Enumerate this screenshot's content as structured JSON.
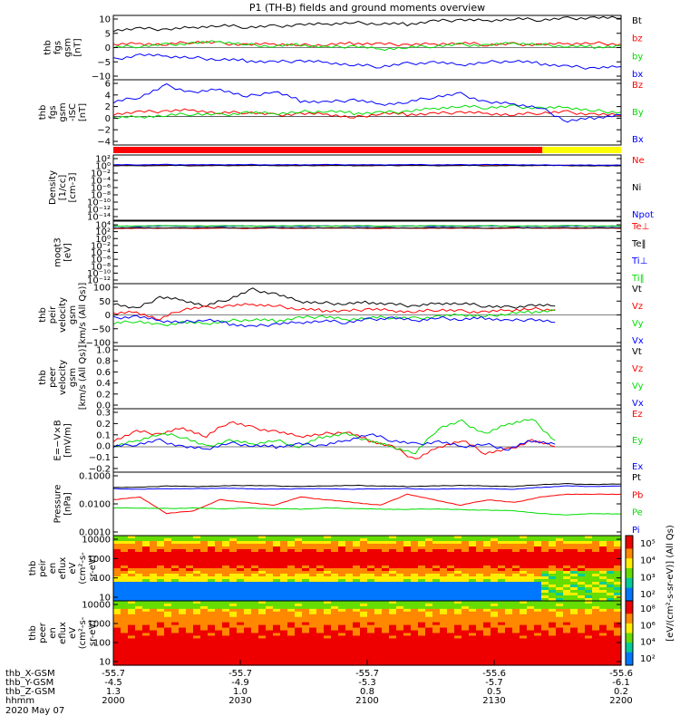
{
  "title": "P1 (TH-B) fields and ground moments overview",
  "colors": {
    "black": "#000000",
    "red": "#ff0000",
    "green": "#00dd00",
    "blue": "#0000ff",
    "yellow": "#ffff00"
  },
  "footer": {
    "rows": [
      {
        "label": "thb_X-GSM",
        "values": [
          "-55.7",
          "-55.7",
          "-55.7",
          "-55.6",
          "-55.6"
        ]
      },
      {
        "label": "thb_Y-GSM",
        "values": [
          "-4.5",
          "-4.9",
          "-5.3",
          "-5.7",
          "-6.1"
        ]
      },
      {
        "label": "thb_Z-GSM",
        "values": [
          "1.3",
          "1.0",
          "0.8",
          "0.5",
          "0.2"
        ]
      },
      {
        "label": "hhmm",
        "values": [
          "2000",
          "2030",
          "2100",
          "2130",
          "2200"
        ]
      }
    ],
    "date": "2020 May 07"
  },
  "chart_data": [
    {
      "type": "line",
      "ylabel": [
        "thb",
        "fgs",
        "gsm",
        "[nT]"
      ],
      "yticks": [
        "10",
        "5",
        "0",
        "−5",
        "−10"
      ],
      "ylim": [
        -11,
        11
      ],
      "series": [
        {
          "name": "Bt",
          "color": "#000000",
          "values": [
            6,
            6.5,
            6.2,
            7,
            7.5,
            7,
            7.3,
            7.8,
            8,
            8.5,
            8.2,
            8,
            9,
            9.5,
            9.3,
            9.8,
            9.5,
            10,
            10.2,
            10
          ]
        },
        {
          "name": "bz",
          "color": "#ff0000",
          "values": [
            1,
            1.5,
            1,
            2,
            1.5,
            1,
            1.2,
            0.8,
            1,
            1.5,
            1.2,
            1,
            1.3,
            1.5,
            1,
            1.2,
            1,
            1.3,
            1.5,
            1.2
          ]
        },
        {
          "name": "by",
          "color": "#00dd00",
          "values": [
            0,
            0.5,
            1,
            1.5,
            2,
            1,
            0.5,
            1,
            0,
            0.5,
            -0.5,
            0,
            0.5,
            1,
            0.8,
            1.5,
            1,
            0.5,
            0.2,
            0.5
          ]
        },
        {
          "name": "bx",
          "color": "#0000ff",
          "values": [
            -4,
            -2.5,
            -3,
            -3.5,
            -4,
            -4.5,
            -5,
            -4.5,
            -5,
            -6,
            -6.5,
            -5.5,
            -5,
            -6,
            -5,
            -4.5,
            -5.5,
            -6.5,
            -7,
            -6.5
          ]
        }
      ]
    },
    {
      "type": "line",
      "ylabel": [
        "thb",
        "fgs",
        "gsm",
        "-ISC",
        "[nT]"
      ],
      "yticks": [
        "6",
        "4",
        "2",
        "0",
        "−2",
        "−4"
      ],
      "ylim": [
        -5,
        6.5
      ],
      "series": [
        {
          "name": "Bz",
          "color": "#ff0000",
          "values": [
            0.5,
            0.8,
            1,
            1.2,
            0.6,
            0.8,
            0.3,
            0.5,
            0.4,
            -0.2,
            0.6,
            0.4,
            0.5,
            0.8,
            0.6,
            0.3,
            0.7,
            0.8,
            0.4,
            0.2
          ]
        },
        {
          "name": "By",
          "color": "#00dd00",
          "values": [
            -0.2,
            0,
            0.2,
            0.5,
            0.3,
            0.7,
            0.5,
            0.8,
            1,
            0.6,
            0.7,
            0.9,
            1.5,
            1.8,
            1.6,
            1.8,
            1.5,
            1.6,
            1,
            0.8
          ]
        },
        {
          "name": "Bx",
          "color": "#0000ff",
          "values": [
            2.5,
            3.5,
            5.5,
            4.2,
            4.8,
            3.5,
            4.5,
            2.8,
            2.5,
            3,
            2.2,
            2.5,
            3.5,
            4,
            2.5,
            2.2,
            1.5,
            -0.8,
            -0.2,
            0.3
          ]
        }
      ]
    },
    {
      "type": "line",
      "log": true,
      "ylabel": [
        "Density",
        "[1/cc]",
        "[cm-3]"
      ],
      "yticks": [
        "10²",
        "10⁰",
        "10⁻²",
        "10⁻⁴",
        "10⁻⁶",
        "10⁻⁸",
        "10⁻¹⁰",
        "10⁻¹²",
        "10⁻¹⁴"
      ],
      "ylim": [
        -15,
        3
      ],
      "series": [
        {
          "name": "Ne",
          "color": "#ff0000",
          "values": [
            0.15,
            0.15,
            0.2,
            0.15,
            0.2,
            0.15,
            0.15,
            0.2,
            0.15,
            0.2,
            0.15,
            0.2,
            0.15,
            0.2,
            0.1,
            0.2,
            0.15,
            0.1,
            0.1,
            0.15
          ]
        },
        {
          "name": "Ni",
          "color": "#000000",
          "values": [
            0.05,
            0.05,
            0.1,
            0.05,
            0.05,
            0.1,
            0.05,
            0.05,
            0.1,
            0.05,
            0.05,
            0.1,
            0.05,
            0.1,
            0.05,
            0.05,
            0.1,
            0.05,
            0,
            0.05
          ]
        },
        {
          "name": "Npot",
          "color": "#0000ff",
          "values": [
            0.3,
            0.3,
            0.35,
            0.3,
            0.3,
            0.35,
            0.3,
            0.3,
            0.35,
            0.3,
            0.3,
            0.35,
            0.3,
            0.3,
            0.35,
            0.3,
            0.25,
            0.2,
            0.2,
            0.2
          ]
        }
      ]
    },
    {
      "type": "line",
      "log": true,
      "ylabel": [
        "moqt3",
        "[eV]"
      ],
      "yticks": [
        "10⁴",
        "10²",
        "10⁰",
        "10⁻²",
        "10⁻⁴",
        "10⁻⁶",
        "10⁻⁸",
        "10⁻¹⁰",
        "10⁻¹²"
      ],
      "ylim": [
        -13,
        5
      ],
      "series": [
        {
          "name": "Te⊥",
          "color": "#ff0000",
          "values": [
            2.9,
            2.9,
            3,
            2.9,
            3,
            2.9,
            3,
            2.9,
            3,
            3,
            2.9,
            3,
            2.9,
            3,
            2.9,
            3,
            3,
            2.9,
            3,
            2.9
          ]
        },
        {
          "name": "Te‖",
          "color": "#000000",
          "values": [
            3,
            3.1,
            3,
            3.1,
            3.1,
            3,
            3.1,
            3,
            3.1,
            3,
            3.1,
            3,
            3.1,
            3.1,
            3,
            3.1,
            3,
            3.1,
            3,
            3.1
          ]
        },
        {
          "name": "Ti⊥",
          "color": "#0000ff",
          "values": [
            3.5,
            3.5,
            3.6,
            3.5,
            3.5,
            3.6,
            3.5,
            3.5,
            3.6,
            3.5,
            3.5,
            3.6,
            3.5,
            3.5,
            3.6,
            3.5,
            3.5,
            3.6,
            3.5,
            3.5
          ]
        },
        {
          "name": "Ti‖",
          "color": "#00dd00",
          "values": [
            3.6,
            3.6,
            3.7,
            3.6,
            3.7,
            3.6,
            3.6,
            3.7,
            3.6,
            3.7,
            3.6,
            3.6,
            3.7,
            3.6,
            3.7,
            3.6,
            3.6,
            3.7,
            3.6,
            3.6
          ]
        }
      ]
    },
    {
      "type": "line",
      "ylabel": [
        "thb",
        "peir",
        "velocity",
        "gsm",
        "[km/s (All Qs)]"
      ],
      "yticks": [
        "100",
        "50",
        "0",
        "−50",
        "−100"
      ],
      "ylim": [
        -105,
        105
      ],
      "series": [
        {
          "name": "Vt",
          "color": "#000000",
          "values": [
            40,
            20,
            60,
            50,
            30,
            55,
            85,
            70,
            45,
            40,
            38,
            42,
            35,
            30,
            40,
            38,
            30,
            25,
            32,
            30
          ]
        },
        {
          "name": "Vz",
          "color": "#ff0000",
          "values": [
            5,
            10,
            -15,
            20,
            25,
            30,
            35,
            30,
            20,
            15,
            12,
            20,
            15,
            10,
            18,
            12,
            10,
            15,
            20,
            18
          ]
        },
        {
          "name": "Vy",
          "color": "#00dd00",
          "values": [
            -30,
            -20,
            -35,
            -25,
            -30,
            -20,
            -15,
            -20,
            -10,
            -5,
            -15,
            -10,
            -8,
            -12,
            -5,
            0,
            -5,
            5,
            10,
            15
          ]
        },
        {
          "name": "Vx",
          "color": "#0000ff",
          "values": [
            -10,
            -5,
            -20,
            -25,
            -15,
            -30,
            -40,
            -30,
            -25,
            -20,
            -25,
            -15,
            -10,
            -20,
            -10,
            -15,
            -10,
            -20,
            -15,
            -25
          ]
        }
      ]
    },
    {
      "type": "line",
      "ylabel": [
        "thb",
        "peer",
        "velocity",
        "gsm",
        "[km/s (All Qs)]"
      ],
      "yticks": [
        "1.0",
        "0.8",
        "0.6",
        "0.4",
        "0.2",
        "0.0"
      ],
      "ylim": [
        0,
        1.0
      ],
      "series": [
        {
          "name": "Vt",
          "color": "#000000",
          "values": []
        },
        {
          "name": "Vz",
          "color": "#ff0000",
          "values": []
        },
        {
          "name": "Vy",
          "color": "#00dd00",
          "values": []
        },
        {
          "name": "Vx",
          "color": "#0000ff",
          "values": []
        }
      ]
    },
    {
      "type": "line",
      "ylabel": [
        "E=−V×B",
        "[mV/m]"
      ],
      "yticks": [
        "0.3",
        "0.2",
        "0.1",
        "0.0",
        "−0.1",
        "−0.2"
      ],
      "ylim": [
        -0.2,
        0.3
      ],
      "series": [
        {
          "name": "Ez",
          "color": "#ff0000",
          "values": [
            0.05,
            0.12,
            0.1,
            0.15,
            0.08,
            0.2,
            0.15,
            0.12,
            0.08,
            0.1,
            0.12,
            0.05,
            0,
            -0.1,
            0,
            0.05,
            -0.05,
            -0.02,
            0.05,
            0
          ]
        },
        {
          "name": "Ey",
          "color": "#00dd00",
          "values": [
            0,
            0.05,
            0.1,
            0.08,
            0,
            0.05,
            0.02,
            0.05,
            0,
            0.08,
            0.1,
            0.05,
            0,
            -0.05,
            0.15,
            0.2,
            0.1,
            0.18,
            0.22,
            0.05
          ]
        },
        {
          "name": "Ex",
          "color": "#0000ff",
          "values": [
            0,
            0.02,
            0.05,
            0,
            -0.02,
            0.03,
            0.01,
            0,
            0.02,
            0.01,
            0.05,
            0.1,
            0.05,
            0.02,
            0.04,
            0,
            0.02,
            -0.02,
            0.05,
            0.02
          ]
        }
      ]
    },
    {
      "type": "line",
      "log": true,
      "ylabel": [
        "Pressure",
        "[nPa]"
      ],
      "yticks": [
        "0.1000",
        "0.0100",
        "0.0010"
      ],
      "ylim": [
        -3.3,
        -1
      ],
      "series": [
        {
          "name": "Pt",
          "color": "#000000",
          "values": [
            -1.55,
            -1.55,
            -1.5,
            -1.52,
            -1.5,
            -1.48,
            -1.5,
            -1.52,
            -1.5,
            -1.48,
            -1.5,
            -1.52,
            -1.5,
            -1.48,
            -1.5,
            -1.52,
            -1.45,
            -1.42,
            -1.45,
            -1.43
          ]
        },
        {
          "name": "Pb",
          "color": "#ff0000",
          "values": [
            -2,
            -1.9,
            -2.5,
            -2.4,
            -2,
            -2.1,
            -2.2,
            -1.9,
            -2,
            -2.1,
            -2.2,
            -1.8,
            -2,
            -2.2,
            -2,
            -2.1,
            -1.9,
            -1.8,
            -1.8,
            -1.8
          ]
        },
        {
          "name": "Pe",
          "color": "#00dd00",
          "values": [
            -2.3,
            -2.3,
            -2.32,
            -2.3,
            -2.33,
            -2.3,
            -2.32,
            -2.34,
            -2.3,
            -2.32,
            -2.34,
            -2.35,
            -2.33,
            -2.36,
            -2.38,
            -2.4,
            -2.5,
            -2.55,
            -2.5,
            -2.52
          ]
        },
        {
          "name": "Pi",
          "color": "#0000ff",
          "values": [
            -1.6,
            -1.62,
            -1.6,
            -1.6,
            -1.58,
            -1.6,
            -1.62,
            -1.6,
            -1.6,
            -1.62,
            -1.6,
            -1.6,
            -1.62,
            -1.6,
            -1.6,
            -1.62,
            -1.55,
            -1.5,
            -1.52,
            -1.5
          ]
        }
      ]
    },
    {
      "type": "heatmap",
      "ylabel": [
        "thb",
        "peir",
        "en",
        "eflux",
        "eV",
        "(cm²-s-",
        "sr-eV)"
      ],
      "yticks": [
        "10000",
        "1000",
        "100",
        "10"
      ],
      "colorbar_ticks": [
        "10⁵",
        "10⁴",
        "10³",
        "10²"
      ]
    },
    {
      "type": "heatmap",
      "ylabel": [
        "thb",
        "peer",
        "en",
        "eflux",
        "eV",
        "(cm²-s-",
        "sr-eV)"
      ],
      "yticks": [
        "10000",
        "1000",
        "100",
        "10"
      ],
      "colorbar_ticks": [
        "10⁸",
        "10⁶",
        "10⁴",
        "10²"
      ],
      "colorbar_label": "[eV/(cm²-s-sr-eV)] (All Qs)"
    }
  ]
}
